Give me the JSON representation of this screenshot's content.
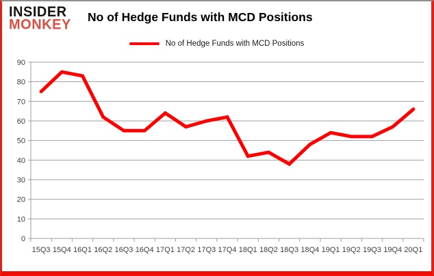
{
  "header": {
    "logo": {
      "top": "INSIDER",
      "bottom": "MONKEY",
      "top_color": "#171310",
      "bottom_color": "#d94f43"
    },
    "title": "No of Hedge Funds with MCD Positions"
  },
  "legend": {
    "label": "No of Hedge Funds with MCD Positions",
    "line_color": "#fe0000"
  },
  "chart_data": {
    "type": "line",
    "title": "No of Hedge Funds with MCD Positions",
    "categories": [
      "15Q3",
      "15Q4",
      "16Q1",
      "16Q2",
      "16Q3",
      "16Q4",
      "17Q1",
      "17Q2",
      "17Q3",
      "17Q4",
      "18Q1",
      "18Q2",
      "18Q3",
      "18Q4",
      "19Q1",
      "19Q2",
      "19Q3",
      "19Q4",
      "20Q1"
    ],
    "series": [
      {
        "name": "No of Hedge Funds with MCD Positions",
        "color": "#fe0000",
        "values": [
          75,
          85,
          83,
          62,
          55,
          55,
          64,
          57,
          60,
          62,
          42,
          44,
          38,
          48,
          54,
          52,
          52,
          57,
          66
        ]
      }
    ],
    "xlabel": "",
    "ylabel": "",
    "ylim": [
      0,
      90
    ],
    "yticks": [
      0,
      10,
      20,
      30,
      40,
      50,
      60,
      70,
      80,
      90
    ],
    "grid": true,
    "grid_color": "#9e9e9e",
    "axis_color": "#9e9e9e",
    "legend_position": "top-center",
    "line_width": 5
  }
}
